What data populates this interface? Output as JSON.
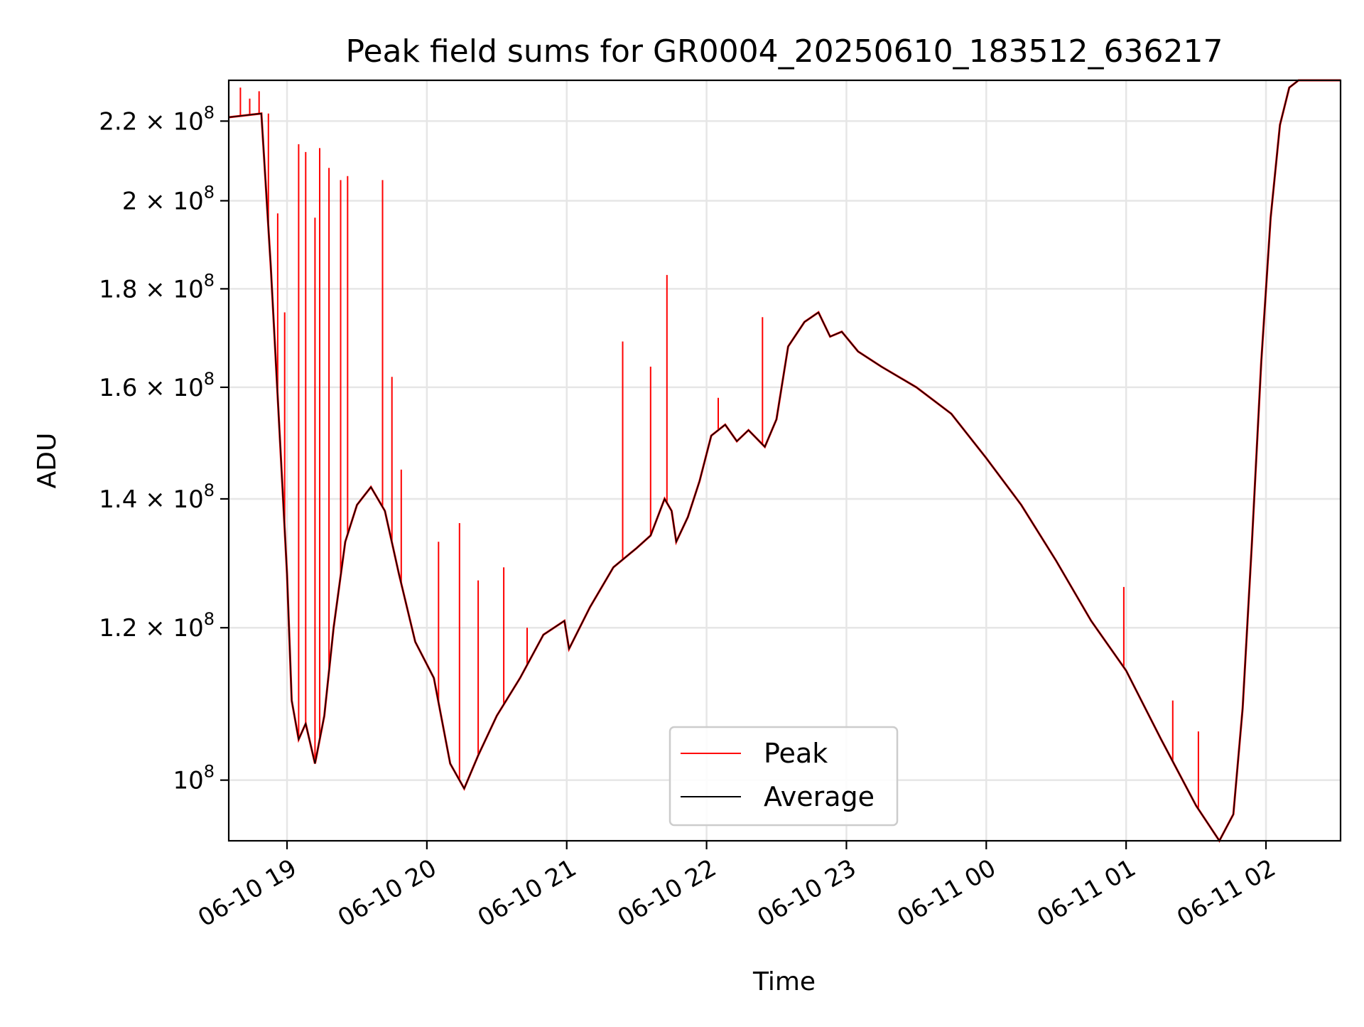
{
  "chart_data": {
    "type": "line",
    "title": "Peak field sums for GR0004_20250610_183512_636217",
    "xlabel": "Time",
    "ylabel": "ADU",
    "y_scale": "log",
    "ylim": [
      93000000,
      231000000
    ],
    "xlim": [
      "2025-06-10 18:35",
      "2025-06-11 02:32"
    ],
    "grid": true,
    "legend_position": "lower center",
    "x_ticks": [
      {
        "value": "2025-06-10 19:00",
        "label": "06-10 19"
      },
      {
        "value": "2025-06-10 20:00",
        "label": "06-10 20"
      },
      {
        "value": "2025-06-10 21:00",
        "label": "06-10 21"
      },
      {
        "value": "2025-06-10 22:00",
        "label": "06-10 22"
      },
      {
        "value": "2025-06-10 23:00",
        "label": "06-10 23"
      },
      {
        "value": "2025-06-11 00:00",
        "label": "06-11 00"
      },
      {
        "value": "2025-06-11 01:00",
        "label": "06-11 01"
      },
      {
        "value": "2025-06-11 02:00",
        "label": "06-11 02"
      }
    ],
    "y_ticks": [
      {
        "value": 100000000,
        "base": "10",
        "exp": "8",
        "mant": ""
      },
      {
        "value": 120000000,
        "base": "10",
        "exp": "8",
        "mant": "1.2 × "
      },
      {
        "value": 140000000,
        "base": "10",
        "exp": "8",
        "mant": "1.4 × "
      },
      {
        "value": 160000000,
        "base": "10",
        "exp": "8",
        "mant": "1.6 × "
      },
      {
        "value": 180000000,
        "base": "10",
        "exp": "8",
        "mant": "1.8 × "
      },
      {
        "value": 200000000,
        "base": "10",
        "exp": "8",
        "mant": "2 × "
      },
      {
        "value": 220000000,
        "base": "10",
        "exp": "8",
        "mant": "2.2 × "
      }
    ],
    "series": [
      {
        "name": "Average",
        "color": "#000000",
        "x": [
          "2025-06-10 18:35",
          "2025-06-10 18:49",
          "2025-06-10 18:53",
          "2025-06-10 18:57",
          "2025-06-10 19:00",
          "2025-06-10 19:02",
          "2025-06-10 19:05",
          "2025-06-10 19:08",
          "2025-06-10 19:12",
          "2025-06-10 19:16",
          "2025-06-10 19:20",
          "2025-06-10 19:25",
          "2025-06-10 19:30",
          "2025-06-10 19:36",
          "2025-06-10 19:42",
          "2025-06-10 19:48",
          "2025-06-10 19:55",
          "2025-06-10 20:03",
          "2025-06-10 20:10",
          "2025-06-10 20:16",
          "2025-06-10 20:22",
          "2025-06-10 20:30",
          "2025-06-10 20:40",
          "2025-06-10 20:50",
          "2025-06-10 20:59",
          "2025-06-10 21:01",
          "2025-06-10 21:10",
          "2025-06-10 21:20",
          "2025-06-10 21:30",
          "2025-06-10 21:36",
          "2025-06-10 21:42",
          "2025-06-10 21:45",
          "2025-06-10 21:47",
          "2025-06-10 21:52",
          "2025-06-10 21:57",
          "2025-06-10 22:02",
          "2025-06-10 22:08",
          "2025-06-10 22:13",
          "2025-06-10 22:18",
          "2025-06-10 22:25",
          "2025-06-10 22:30",
          "2025-06-10 22:35",
          "2025-06-10 22:42",
          "2025-06-10 22:48",
          "2025-06-10 22:53",
          "2025-06-10 22:58",
          "2025-06-10 23:05",
          "2025-06-10 23:15",
          "2025-06-10 23:30",
          "2025-06-10 23:45",
          "2025-06-11 00:00",
          "2025-06-11 00:15",
          "2025-06-11 00:30",
          "2025-06-11 00:45",
          "2025-06-11 01:00",
          "2025-06-11 01:15",
          "2025-06-11 01:30",
          "2025-06-11 01:40",
          "2025-06-11 01:46",
          "2025-06-11 01:50",
          "2025-06-11 01:54",
          "2025-06-11 01:58",
          "2025-06-11 02:02",
          "2025-06-11 02:06",
          "2025-06-11 02:10",
          "2025-06-11 02:14",
          "2025-06-11 02:18",
          "2025-06-11 02:23",
          "2025-06-11 02:32"
        ],
        "y": [
          221000000,
          222000000,
          185000000,
          150000000,
          128000000,
          110000000,
          105000000,
          107000000,
          102000000,
          108000000,
          120000000,
          133000000,
          139000000,
          142000000,
          138000000,
          128000000,
          118000000,
          113000000,
          102000000,
          99000000,
          103000000,
          108000000,
          113000000,
          119000000,
          121000000,
          117000000,
          123000000,
          129000000,
          132000000,
          134000000,
          140000000,
          138000000,
          133000000,
          137000000,
          143000000,
          151000000,
          153000000,
          150000000,
          152000000,
          149000000,
          154000000,
          168000000,
          173000000,
          175000000,
          170000000,
          171000000,
          167000000,
          164000000,
          160000000,
          155000000,
          147000000,
          139000000,
          130000000,
          121000000,
          114000000,
          105000000,
          97000000,
          93000000,
          96000000,
          109000000,
          133000000,
          165000000,
          196000000,
          219000000,
          229000000,
          231000000,
          231000000,
          231000000,
          231000000
        ]
      },
      {
        "name": "Peak",
        "color": "#ff0000",
        "x": [
          "2025-06-10 18:35",
          "2025-06-10 18:40",
          "2025-06-10 18:44",
          "2025-06-10 18:48",
          "2025-06-10 18:52",
          "2025-06-10 18:56",
          "2025-06-10 18:59",
          "2025-06-10 19:05",
          "2025-06-10 19:08",
          "2025-06-10 19:12",
          "2025-06-10 19:14",
          "2025-06-10 19:18",
          "2025-06-10 19:23",
          "2025-06-10 19:26",
          "2025-06-10 19:41",
          "2025-06-10 19:45",
          "2025-06-10 19:49",
          "2025-06-10 20:05",
          "2025-06-10 20:14",
          "2025-06-10 20:22",
          "2025-06-10 20:33",
          "2025-06-10 20:43",
          "2025-06-10 21:24",
          "2025-06-10 21:36",
          "2025-06-10 21:43",
          "2025-06-10 22:05",
          "2025-06-10 22:24",
          "2025-06-11 00:59",
          "2025-06-11 01:20",
          "2025-06-11 01:31"
        ],
        "y": [
          227000000,
          229000000,
          226000000,
          228000000,
          222000000,
          197000000,
          175000000,
          214000000,
          212000000,
          196000000,
          213000000,
          208000000,
          205000000,
          206000000,
          205000000,
          162000000,
          145000000,
          133000000,
          136000000,
          127000000,
          129000000,
          120000000,
          169000000,
          164000000,
          183000000,
          158000000,
          174000000,
          126000000,
          110000000,
          106000000
        ]
      }
    ],
    "legend": [
      {
        "label": "Peak",
        "color": "#ff0000"
      },
      {
        "label": "Average",
        "color": "#000000"
      }
    ]
  }
}
